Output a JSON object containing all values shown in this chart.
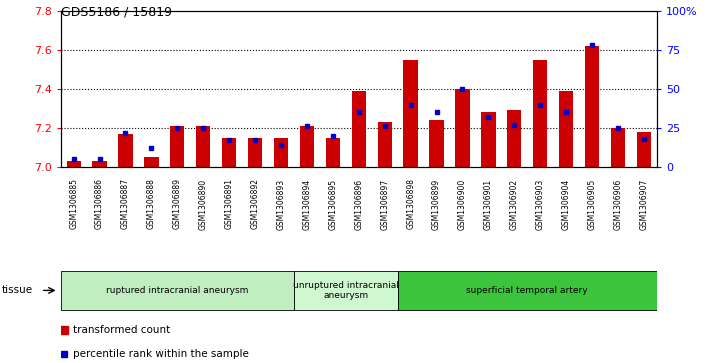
{
  "title": "GDS5186 / 15819",
  "samples": [
    "GSM1306885",
    "GSM1306886",
    "GSM1306887",
    "GSM1306888",
    "GSM1306889",
    "GSM1306890",
    "GSM1306891",
    "GSM1306892",
    "GSM1306893",
    "GSM1306894",
    "GSM1306895",
    "GSM1306896",
    "GSM1306897",
    "GSM1306898",
    "GSM1306899",
    "GSM1306900",
    "GSM1306901",
    "GSM1306902",
    "GSM1306903",
    "GSM1306904",
    "GSM1306905",
    "GSM1306906",
    "GSM1306907"
  ],
  "red_values": [
    7.03,
    7.03,
    7.17,
    7.05,
    7.21,
    7.21,
    7.15,
    7.15,
    7.15,
    7.21,
    7.15,
    7.39,
    7.23,
    7.55,
    7.24,
    7.4,
    7.28,
    7.29,
    7.55,
    7.39,
    7.62,
    7.2,
    7.18
  ],
  "blue_values": [
    5,
    5,
    22,
    12,
    25,
    25,
    17,
    17,
    14,
    26,
    20,
    35,
    26,
    40,
    35,
    50,
    32,
    27,
    40,
    35,
    78,
    25,
    18
  ],
  "ylim_left": [
    7.0,
    7.8
  ],
  "ylim_right": [
    0,
    100
  ],
  "yticks_left": [
    7.0,
    7.2,
    7.4,
    7.6,
    7.8
  ],
  "yticks_right": [
    0,
    25,
    50,
    75,
    100
  ],
  "ytick_labels_right": [
    "0",
    "25",
    "50",
    "75",
    "100%"
  ],
  "grid_values": [
    7.2,
    7.4,
    7.6
  ],
  "groups": [
    {
      "label": "ruptured intracranial aneurysm",
      "start": 0,
      "end": 9,
      "color": "#c0eec0"
    },
    {
      "label": "unruptured intracranial\naneurysm",
      "start": 9,
      "end": 13,
      "color": "#d0f8d0"
    },
    {
      "label": "superficial temporal artery",
      "start": 13,
      "end": 23,
      "color": "#3dc43d"
    }
  ],
  "tissue_label": "tissue",
  "legend_red": "transformed count",
  "legend_blue": "percentile rank within the sample",
  "bar_color": "#cc0000",
  "blue_color": "#0000cc",
  "bar_width": 0.55
}
